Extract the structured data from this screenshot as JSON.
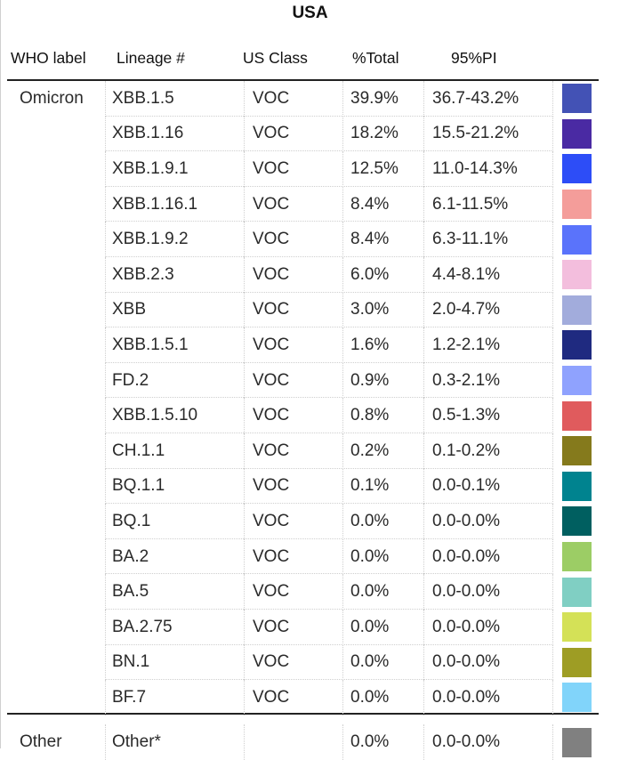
{
  "title": "USA",
  "headers": {
    "who": "WHO label",
    "lineage": "Lineage #",
    "us_class": "US Class",
    "total": "%Total",
    "pi": "95%PI"
  },
  "groups": [
    {
      "label": "Omicron",
      "rows": [
        {
          "lineage": "XBB.1.5",
          "class": "VOC",
          "total": "39.9%",
          "pi": "36.7-43.2%",
          "color": "#4352b5"
        },
        {
          "lineage": "XBB.1.16",
          "class": "VOC",
          "total": "18.2%",
          "pi": "15.5-21.2%",
          "color": "#4a2aa3"
        },
        {
          "lineage": "XBB.1.9.1",
          "class": "VOC",
          "total": "12.5%",
          "pi": "11.0-14.3%",
          "color": "#2d4df7"
        },
        {
          "lineage": "XBB.1.16.1",
          "class": "VOC",
          "total": "8.4%",
          "pi": "6.1-11.5%",
          "color": "#f49d9a"
        },
        {
          "lineage": "XBB.1.9.2",
          "class": "VOC",
          "total": "8.4%",
          "pi": "6.3-11.1%",
          "color": "#5a73fb"
        },
        {
          "lineage": "XBB.2.3",
          "class": "VOC",
          "total": "6.0%",
          "pi": "4.4-8.1%",
          "color": "#f3bedd"
        },
        {
          "lineage": "XBB",
          "class": "VOC",
          "total": "3.0%",
          "pi": "2.0-4.7%",
          "color": "#a2acdc"
        },
        {
          "lineage": "XBB.1.5.1",
          "class": "VOC",
          "total": "1.6%",
          "pi": "1.2-2.1%",
          "color": "#1f2a80"
        },
        {
          "lineage": "FD.2",
          "class": "VOC",
          "total": "0.9%",
          "pi": "0.3-2.1%",
          "color": "#8fa2fe"
        },
        {
          "lineage": "XBB.1.5.10",
          "class": "VOC",
          "total": "0.8%",
          "pi": "0.5-1.3%",
          "color": "#e05b5d"
        },
        {
          "lineage": "CH.1.1",
          "class": "VOC",
          "total": "0.2%",
          "pi": "0.1-0.2%",
          "color": "#857a1c"
        },
        {
          "lineage": "BQ.1.1",
          "class": "VOC",
          "total": "0.1%",
          "pi": "0.0-0.1%",
          "color": "#00838f"
        },
        {
          "lineage": "BQ.1",
          "class": "VOC",
          "total": "0.0%",
          "pi": "0.0-0.0%",
          "color": "#005f60"
        },
        {
          "lineage": "BA.2",
          "class": "VOC",
          "total": "0.0%",
          "pi": "0.0-0.0%",
          "color": "#9ccd65"
        },
        {
          "lineage": "BA.5",
          "class": "VOC",
          "total": "0.0%",
          "pi": "0.0-0.0%",
          "color": "#80cfc3"
        },
        {
          "lineage": "BA.2.75",
          "class": "VOC",
          "total": "0.0%",
          "pi": "0.0-0.0%",
          "color": "#d4e157"
        },
        {
          "lineage": "BN.1",
          "class": "VOC",
          "total": "0.0%",
          "pi": "0.0-0.0%",
          "color": "#9e9d24"
        },
        {
          "lineage": "BF.7",
          "class": "VOC",
          "total": "0.0%",
          "pi": "0.0-0.0%",
          "color": "#81d4fa"
        }
      ]
    },
    {
      "label": "Other",
      "rows": [
        {
          "lineage": "Other*",
          "class": "",
          "total": "0.0%",
          "pi": "0.0-0.0%",
          "color": "#808080"
        }
      ]
    }
  ]
}
